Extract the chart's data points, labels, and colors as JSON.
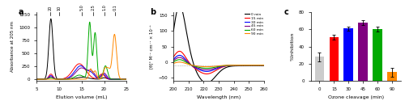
{
  "panel_a": {
    "xlabel": "Elution volume (mL)",
    "ylabel": "Absorbance at 205 nm",
    "xlim": [
      5,
      25
    ],
    "ylim": [
      -30,
      1300
    ],
    "xticks": [
      5,
      10,
      15,
      20,
      25
    ],
    "yticks": [
      0,
      250,
      500,
      750,
      1000,
      1250
    ],
    "marker_positions": [
      8.0,
      10.0,
      15.0,
      17.5,
      20.0,
      22.5
    ],
    "marker_labels": [
      "20",
      "10",
      "5.0",
      "2.5",
      "1.0",
      "0.1"
    ],
    "colors": {
      "0min": "#000000",
      "15min": "#ff0000",
      "30min": "#0000ff",
      "45min": "#800080",
      "60min": "#00aa00",
      "90min": "#ff8800"
    }
  },
  "panel_b": {
    "xlabel": "Wavelength (nm)",
    "ylabel": "[θ]° M⁻¹ cm⁻¹ × 10⁻³",
    "xlim": [
      200,
      260
    ],
    "ylim": [
      -60,
      160
    ],
    "yticks": [
      -50,
      0,
      50,
      100,
      150
    ],
    "xticks": [
      200,
      210,
      220,
      230,
      240,
      250,
      260
    ],
    "legend_labels": [
      "0 min",
      "15 min",
      "30 min",
      "45 min",
      "60 min",
      "90 min"
    ],
    "colors": [
      "#000000",
      "#ff0000",
      "#0000ff",
      "#800080",
      "#00aa00",
      "#ff8800"
    ]
  },
  "panel_c": {
    "xlabel": "Ozone cleavage (min)",
    "ylabel": "%Inhibition",
    "categories": [
      "0",
      "15",
      "30",
      "45",
      "60",
      "90"
    ],
    "values": [
      28,
      51,
      61,
      68,
      60,
      10
    ],
    "errors": [
      5,
      3,
      2.5,
      3,
      3,
      5
    ],
    "bar_colors": [
      "#cccccc",
      "#ff0000",
      "#0000ff",
      "#800080",
      "#00aa00",
      "#ff8800"
    ],
    "ylim": [
      0,
      80
    ],
    "yticks": [
      0,
      20,
      40,
      60,
      80
    ]
  }
}
